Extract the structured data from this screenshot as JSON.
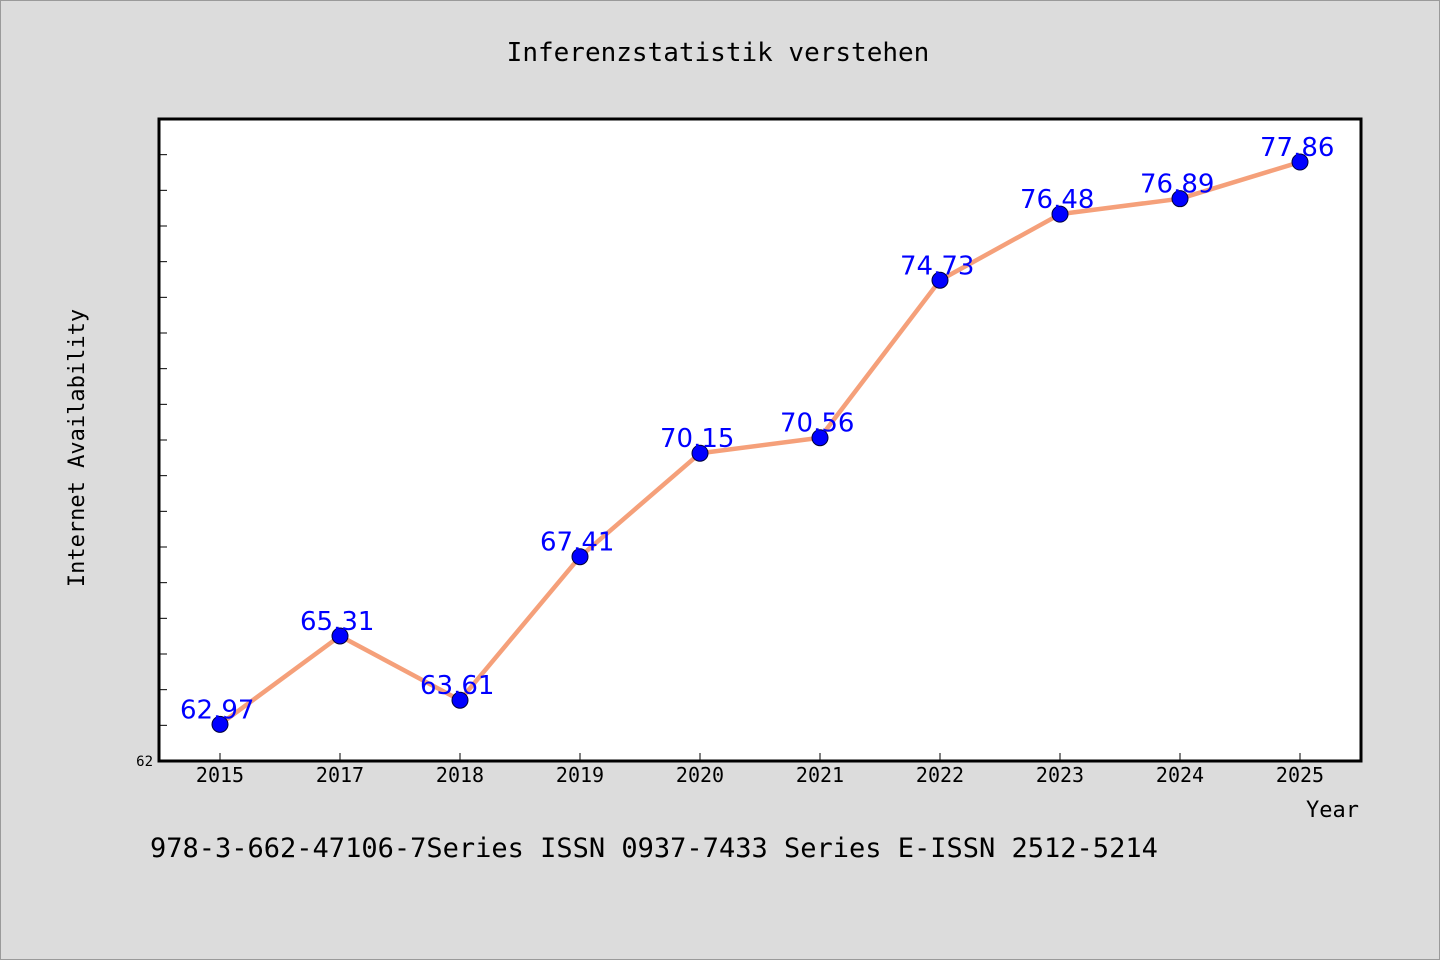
{
  "footer": "978-3-662-47106-7Series ISSN 0937-7433 Series E-ISSN 2512-5214",
  "chart_data": {
    "type": "line",
    "title": "Inferenzstatistik verstehen",
    "xlabel": "Year",
    "ylabel": "Internet Availability",
    "categories": [
      "2015",
      "2017",
      "2018",
      "2019",
      "2020",
      "2021",
      "2022",
      "2023",
      "2024",
      "2025"
    ],
    "series": [
      {
        "values": [
          62.97,
          65.31,
          63.61,
          67.41,
          70.15,
          70.56,
          74.73,
          76.48,
          76.89,
          77.86
        ],
        "labels": [
          "62.97",
          "65.31",
          "63.61",
          "67.41",
          "70.15",
          "70.56",
          "74.73",
          "76.48",
          "76.89",
          "77.86"
        ],
        "line_color": "#f5a07a",
        "marker_color": "#0000ff"
      }
    ],
    "ylim": [
      62,
      79
    ],
    "ytick_labels": [
      "62"
    ],
    "grid": false,
    "legend": "none",
    "background": "#dcdcdc",
    "plot_background": "#ffffff"
  }
}
